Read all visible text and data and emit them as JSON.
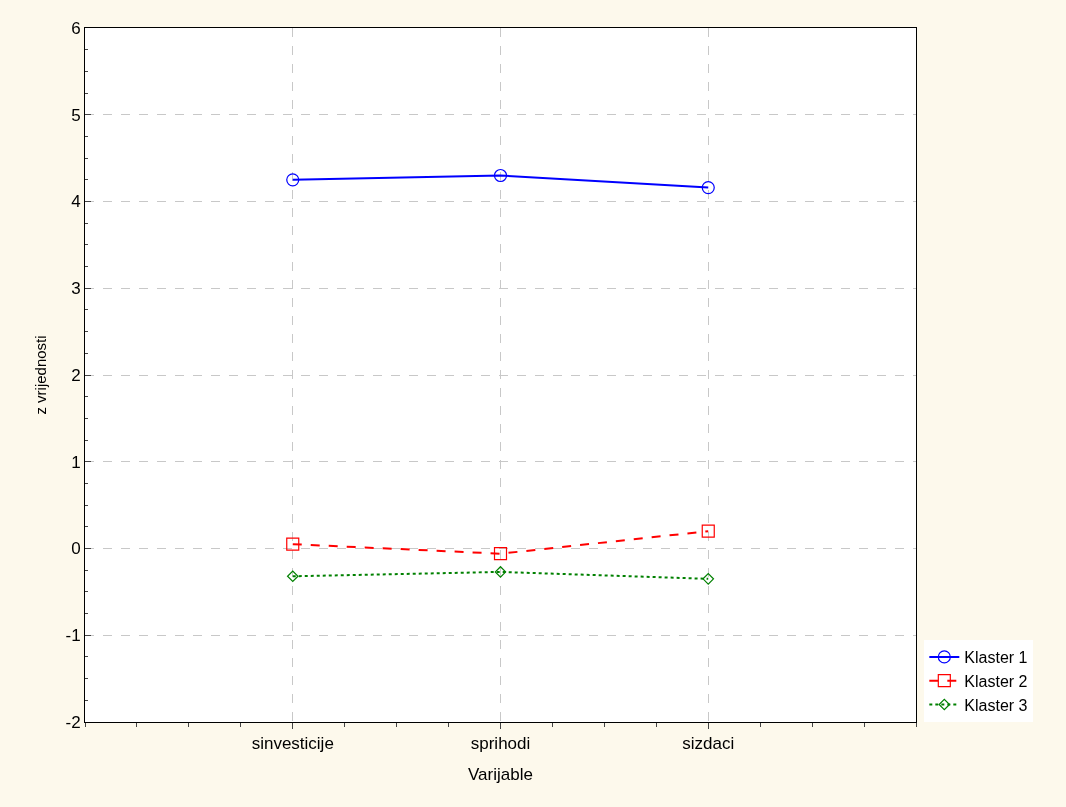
{
  "chart_data": {
    "type": "line",
    "xlabel": "Varijable",
    "ylabel": "z vrijednosti",
    "categories": [
      "sinvesticije",
      "sprihodi",
      "sizdaci"
    ],
    "series": [
      {
        "name": "Klaster 1",
        "color": "#0000ff",
        "values": [
          4.25,
          4.3,
          4.16
        ],
        "marker": "circle",
        "line_style": "solid"
      },
      {
        "name": "Klaster 2",
        "color": "#ff0000",
        "values": [
          0.05,
          -0.06,
          0.2
        ],
        "marker": "square",
        "line_style": "dashed"
      },
      {
        "name": "Klaster 3",
        "color": "#008000",
        "values": [
          -0.32,
          -0.27,
          -0.35
        ],
        "marker": "diamond",
        "line_style": "dotted"
      }
    ],
    "ylim": [
      -2,
      6
    ],
    "yticks": [
      -2,
      -1,
      0,
      1,
      2,
      3,
      4,
      5,
      6
    ],
    "grid": true,
    "legend": "bottom right"
  }
}
